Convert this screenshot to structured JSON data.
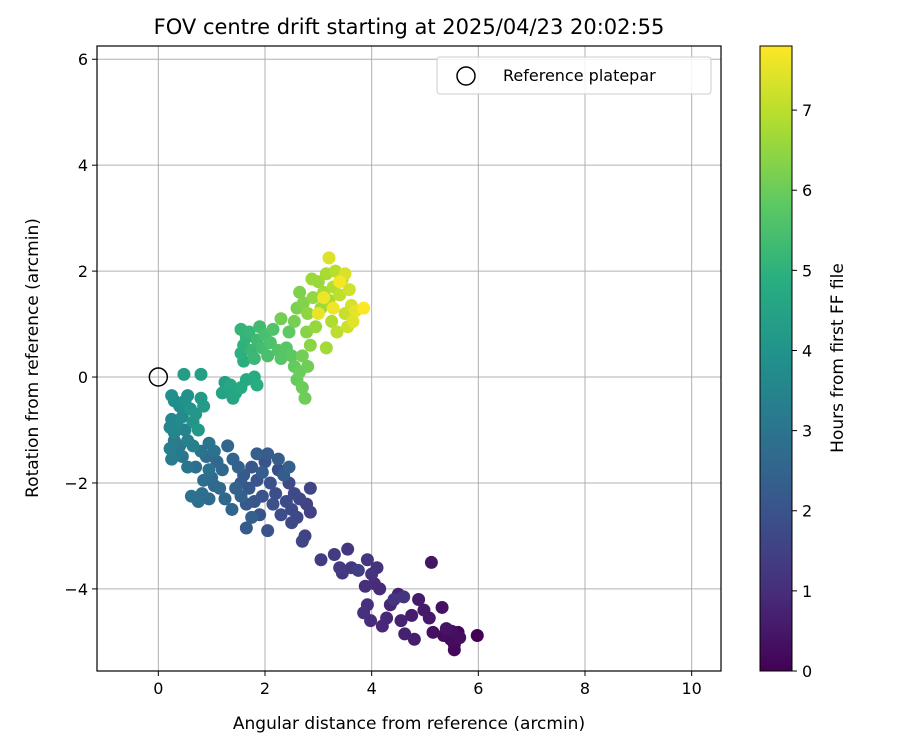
{
  "chart_data": {
    "type": "scatter",
    "title": "FOV centre drift starting at 2025/04/23 20:02:55",
    "xlabel": "Angular distance from reference (arcmin)",
    "ylabel": "Rotation from reference (arcmin)",
    "xlim": [
      -1.15,
      10.55
    ],
    "ylim": [
      -5.55,
      6.25
    ],
    "xticks": [
      0,
      2,
      4,
      6,
      8,
      10
    ],
    "yticks": [
      -4,
      -2,
      0,
      2,
      4,
      6
    ],
    "grid": true,
    "legend": {
      "placement": "upper right",
      "entries": [
        "Reference platepar"
      ]
    },
    "reference_point": {
      "x": 0,
      "y": 0,
      "label": "Reference platepar"
    },
    "colorbar": {
      "label": "Hours from first FF file",
      "colormap": "viridis",
      "range": [
        0,
        7.8
      ],
      "ticks": [
        0,
        1,
        2,
        3,
        4,
        5,
        6,
        7
      ]
    },
    "series": [
      {
        "color_by": "hours",
        "points": [
          {
            "x": 5.98,
            "y": -4.88,
            "h": 0.0
          },
          {
            "x": 5.62,
            "y": -4.82,
            "h": 0.1
          },
          {
            "x": 5.55,
            "y": -5.15,
            "h": 0.15
          },
          {
            "x": 5.55,
            "y": -5.05,
            "h": 0.18
          },
          {
            "x": 5.48,
            "y": -4.95,
            "h": 0.22
          },
          {
            "x": 5.35,
            "y": -4.88,
            "h": 0.25
          },
          {
            "x": 5.65,
            "y": -4.92,
            "h": 0.28
          },
          {
            "x": 5.5,
            "y": -4.8,
            "h": 0.3
          },
          {
            "x": 5.32,
            "y": -4.35,
            "h": 0.35
          },
          {
            "x": 5.15,
            "y": -4.82,
            "h": 0.38
          },
          {
            "x": 5.4,
            "y": -4.75,
            "h": 0.42
          },
          {
            "x": 5.12,
            "y": -3.5,
            "h": 0.45
          },
          {
            "x": 5.08,
            "y": -4.55,
            "h": 0.5
          },
          {
            "x": 4.98,
            "y": -4.4,
            "h": 0.55
          },
          {
            "x": 4.88,
            "y": -4.2,
            "h": 0.58
          },
          {
            "x": 4.75,
            "y": -4.5,
            "h": 0.62
          },
          {
            "x": 4.8,
            "y": -4.95,
            "h": 0.65
          },
          {
            "x": 4.62,
            "y": -4.85,
            "h": 0.7
          },
          {
            "x": 4.55,
            "y": -4.6,
            "h": 0.75
          },
          {
            "x": 4.5,
            "y": -4.1,
            "h": 0.78
          },
          {
            "x": 4.35,
            "y": -4.3,
            "h": 0.82
          },
          {
            "x": 4.28,
            "y": -4.55,
            "h": 0.85
          },
          {
            "x": 4.2,
            "y": -4.7,
            "h": 0.88
          },
          {
            "x": 4.15,
            "y": -4.0,
            "h": 0.9
          },
          {
            "x": 4.05,
            "y": -3.9,
            "h": 0.95
          },
          {
            "x": 3.98,
            "y": -4.6,
            "h": 0.98
          },
          {
            "x": 3.92,
            "y": -4.3,
            "h": 1.02
          },
          {
            "x": 3.88,
            "y": -3.95,
            "h": 1.05
          },
          {
            "x": 3.85,
            "y": -4.45,
            "h": 1.08
          },
          {
            "x": 4.1,
            "y": -3.6,
            "h": 1.1
          },
          {
            "x": 4.0,
            "y": -3.72,
            "h": 1.12
          },
          {
            "x": 4.6,
            "y": -4.15,
            "h": 1.15
          },
          {
            "x": 4.42,
            "y": -4.2,
            "h": 1.18
          },
          {
            "x": 3.92,
            "y": -3.45,
            "h": 1.2
          },
          {
            "x": 3.55,
            "y": -3.25,
            "h": 1.25
          },
          {
            "x": 3.62,
            "y": -3.6,
            "h": 1.28
          },
          {
            "x": 3.45,
            "y": -3.7,
            "h": 1.3
          },
          {
            "x": 3.4,
            "y": -3.6,
            "h": 1.35
          },
          {
            "x": 3.3,
            "y": -3.35,
            "h": 1.38
          },
          {
            "x": 3.05,
            "y": -3.45,
            "h": 1.4
          },
          {
            "x": 3.75,
            "y": -3.65,
            "h": 1.42
          },
          {
            "x": 2.85,
            "y": -2.55,
            "h": 1.5
          },
          {
            "x": 2.78,
            "y": -2.4,
            "h": 1.55
          },
          {
            "x": 2.75,
            "y": -3.0,
            "h": 1.58
          },
          {
            "x": 2.7,
            "y": -3.1,
            "h": 1.6
          },
          {
            "x": 2.85,
            "y": -2.1,
            "h": 1.62
          },
          {
            "x": 2.65,
            "y": -2.3,
            "h": 1.65
          },
          {
            "x": 2.6,
            "y": -2.65,
            "h": 1.68
          },
          {
            "x": 2.55,
            "y": -2.2,
            "h": 1.7
          },
          {
            "x": 2.5,
            "y": -2.75,
            "h": 1.72
          },
          {
            "x": 2.5,
            "y": -2.5,
            "h": 1.75
          },
          {
            "x": 2.45,
            "y": -2.0,
            "h": 1.78
          },
          {
            "x": 2.4,
            "y": -2.35,
            "h": 1.8
          },
          {
            "x": 2.3,
            "y": -2.6,
            "h": 1.82
          },
          {
            "x": 2.25,
            "y": -1.75,
            "h": 1.85
          },
          {
            "x": 2.2,
            "y": -2.2,
            "h": 1.88
          },
          {
            "x": 2.15,
            "y": -2.4,
            "h": 1.9
          },
          {
            "x": 2.1,
            "y": -2.0,
            "h": 1.92
          },
          {
            "x": 2.05,
            "y": -2.9,
            "h": 1.95
          },
          {
            "x": 2.0,
            "y": -1.6,
            "h": 1.98
          },
          {
            "x": 1.95,
            "y": -2.25,
            "h": 2.0
          },
          {
            "x": 1.9,
            "y": -2.6,
            "h": 2.02
          },
          {
            "x": 1.85,
            "y": -1.95,
            "h": 2.05
          },
          {
            "x": 1.8,
            "y": -2.35,
            "h": 2.08
          },
          {
            "x": 1.75,
            "y": -1.7,
            "h": 2.1
          },
          {
            "x": 1.7,
            "y": -2.1,
            "h": 2.12
          },
          {
            "x": 1.65,
            "y": -2.4,
            "h": 2.15
          },
          {
            "x": 1.65,
            "y": -2.85,
            "h": 2.18
          },
          {
            "x": 1.6,
            "y": -1.85,
            "h": 2.2
          },
          {
            "x": 1.55,
            "y": -2.0,
            "h": 2.22
          },
          {
            "x": 2.35,
            "y": -1.85,
            "h": 2.25
          },
          {
            "x": 2.25,
            "y": -1.55,
            "h": 2.28
          },
          {
            "x": 2.05,
            "y": -1.45,
            "h": 2.3
          },
          {
            "x": 1.95,
            "y": -1.8,
            "h": 2.32
          },
          {
            "x": 1.85,
            "y": -1.45,
            "h": 2.35
          },
          {
            "x": 2.45,
            "y": -1.7,
            "h": 2.38
          },
          {
            "x": 1.75,
            "y": -2.65,
            "h": 2.4
          },
          {
            "x": 1.55,
            "y": -2.25,
            "h": 2.42
          },
          {
            "x": 1.5,
            "y": -1.7,
            "h": 2.45
          },
          {
            "x": 1.45,
            "y": -2.1,
            "h": 2.48
          },
          {
            "x": 1.4,
            "y": -1.55,
            "h": 2.5
          },
          {
            "x": 1.38,
            "y": -2.5,
            "h": 2.52
          },
          {
            "x": 1.3,
            "y": -1.3,
            "h": 2.55
          },
          {
            "x": 1.25,
            "y": -2.3,
            "h": 2.58
          },
          {
            "x": 1.2,
            "y": -1.75,
            "h": 2.6
          },
          {
            "x": 1.15,
            "y": -2.1,
            "h": 2.62
          },
          {
            "x": 1.1,
            "y": -1.6,
            "h": 2.65
          },
          {
            "x": 1.05,
            "y": -2.05,
            "h": 2.68
          },
          {
            "x": 1.0,
            "y": -1.9,
            "h": 2.7
          },
          {
            "x": 0.95,
            "y": -2.3,
            "h": 2.72
          },
          {
            "x": 0.9,
            "y": -1.5,
            "h": 2.75
          },
          {
            "x": 0.85,
            "y": -1.95,
            "h": 2.78
          },
          {
            "x": 0.82,
            "y": -2.2,
            "h": 2.8
          },
          {
            "x": 0.75,
            "y": -2.35,
            "h": 2.82
          },
          {
            "x": 0.7,
            "y": -1.7,
            "h": 2.85
          },
          {
            "x": 0.62,
            "y": -2.25,
            "h": 2.88
          },
          {
            "x": 0.95,
            "y": -1.75,
            "h": 2.9
          },
          {
            "x": 1.05,
            "y": -1.4,
            "h": 2.92
          },
          {
            "x": 0.8,
            "y": -1.4,
            "h": 2.95
          },
          {
            "x": 0.95,
            "y": -1.25,
            "h": 2.98
          },
          {
            "x": 0.55,
            "y": -1.7,
            "h": 3.0
          },
          {
            "x": 0.45,
            "y": -1.5,
            "h": 3.05
          },
          {
            "x": 0.4,
            "y": -1.3,
            "h": 3.1
          },
          {
            "x": 0.35,
            "y": -1.45,
            "h": 3.15
          },
          {
            "x": 0.3,
            "y": -1.2,
            "h": 3.2
          },
          {
            "x": 0.25,
            "y": -1.55,
            "h": 3.25
          },
          {
            "x": 0.22,
            "y": -1.35,
            "h": 3.3
          },
          {
            "x": 0.55,
            "y": -1.2,
            "h": 3.35
          },
          {
            "x": 0.65,
            "y": -1.3,
            "h": 3.4
          },
          {
            "x": 0.5,
            "y": -1.0,
            "h": 3.45
          },
          {
            "x": 0.3,
            "y": -1.05,
            "h": 3.5
          },
          {
            "x": 0.22,
            "y": -0.95,
            "h": 3.55
          },
          {
            "x": 0.25,
            "y": -0.8,
            "h": 3.6
          },
          {
            "x": 0.35,
            "y": -0.9,
            "h": 3.65
          },
          {
            "x": 0.45,
            "y": -0.75,
            "h": 3.7
          },
          {
            "x": 0.4,
            "y": -0.55,
            "h": 3.75
          },
          {
            "x": 0.3,
            "y": -0.45,
            "h": 3.8
          },
          {
            "x": 0.25,
            "y": -0.35,
            "h": 3.85
          },
          {
            "x": 0.5,
            "y": -0.45,
            "h": 3.9
          },
          {
            "x": 0.55,
            "y": -0.35,
            "h": 3.95
          },
          {
            "x": 0.6,
            "y": -0.6,
            "h": 4.0
          },
          {
            "x": 0.65,
            "y": -0.85,
            "h": 4.05
          },
          {
            "x": 0.7,
            "y": -0.7,
            "h": 4.1
          },
          {
            "x": 0.75,
            "y": -1.0,
            "h": 4.15
          },
          {
            "x": 0.8,
            "y": -0.4,
            "h": 4.2
          },
          {
            "x": 0.85,
            "y": -0.55,
            "h": 4.25
          },
          {
            "x": 0.48,
            "y": 0.05,
            "h": 4.3
          },
          {
            "x": 0.8,
            "y": 0.05,
            "h": 4.35
          },
          {
            "x": 1.25,
            "y": -0.1,
            "h": 4.4
          },
          {
            "x": 1.2,
            "y": -0.3,
            "h": 4.45
          },
          {
            "x": 1.3,
            "y": -0.25,
            "h": 4.5
          },
          {
            "x": 1.4,
            "y": -0.4,
            "h": 4.55
          },
          {
            "x": 1.35,
            "y": -0.15,
            "h": 4.6
          },
          {
            "x": 1.45,
            "y": -0.3,
            "h": 4.65
          },
          {
            "x": 1.55,
            "y": -0.2,
            "h": 4.7
          },
          {
            "x": 1.65,
            "y": -0.05,
            "h": 4.75
          },
          {
            "x": 1.8,
            "y": 0.0,
            "h": 4.8
          },
          {
            "x": 1.85,
            "y": -0.15,
            "h": 4.85
          },
          {
            "x": 1.6,
            "y": 0.3,
            "h": 4.9
          },
          {
            "x": 1.55,
            "y": 0.45,
            "h": 4.95
          },
          {
            "x": 1.6,
            "y": 0.6,
            "h": 5.0
          },
          {
            "x": 1.65,
            "y": 0.75,
            "h": 5.05
          },
          {
            "x": 1.55,
            "y": 0.9,
            "h": 5.1
          },
          {
            "x": 1.7,
            "y": 0.85,
            "h": 5.15
          },
          {
            "x": 1.75,
            "y": 0.5,
            "h": 5.2
          },
          {
            "x": 1.8,
            "y": 0.35,
            "h": 5.25
          },
          {
            "x": 1.85,
            "y": 0.7,
            "h": 5.3
          },
          {
            "x": 1.9,
            "y": 0.95,
            "h": 5.35
          },
          {
            "x": 1.95,
            "y": 0.55,
            "h": 5.4
          },
          {
            "x": 2.0,
            "y": 0.8,
            "h": 5.45
          },
          {
            "x": 2.05,
            "y": 0.4,
            "h": 5.5
          },
          {
            "x": 2.1,
            "y": 0.65,
            "h": 5.55
          },
          {
            "x": 2.15,
            "y": 0.9,
            "h": 5.6
          },
          {
            "x": 2.25,
            "y": 0.5,
            "h": 5.65
          },
          {
            "x": 2.3,
            "y": 0.35,
            "h": 5.7
          },
          {
            "x": 2.4,
            "y": 0.55,
            "h": 5.75
          },
          {
            "x": 2.5,
            "y": 0.4,
            "h": 5.8
          },
          {
            "x": 2.45,
            "y": 0.85,
            "h": 5.85
          },
          {
            "x": 2.55,
            "y": 0.2,
            "h": 5.9
          },
          {
            "x": 2.6,
            "y": -0.05,
            "h": 5.95
          },
          {
            "x": 2.65,
            "y": 0.1,
            "h": 6.0
          },
          {
            "x": 2.7,
            "y": -0.2,
            "h": 6.02
          },
          {
            "x": 2.75,
            "y": -0.4,
            "h": 6.05
          },
          {
            "x": 2.8,
            "y": 0.2,
            "h": 6.08
          },
          {
            "x": 2.7,
            "y": 0.4,
            "h": 6.1
          },
          {
            "x": 2.3,
            "y": 1.1,
            "h": 6.12
          },
          {
            "x": 2.55,
            "y": 1.05,
            "h": 6.15
          },
          {
            "x": 2.6,
            "y": 1.3,
            "h": 6.2
          },
          {
            "x": 2.65,
            "y": 1.6,
            "h": 6.25
          },
          {
            "x": 2.72,
            "y": 1.4,
            "h": 6.3
          },
          {
            "x": 2.78,
            "y": 0.85,
            "h": 6.35
          },
          {
            "x": 2.85,
            "y": 0.6,
            "h": 6.4
          },
          {
            "x": 2.8,
            "y": 1.2,
            "h": 6.45
          },
          {
            "x": 2.9,
            "y": 1.5,
            "h": 6.5
          },
          {
            "x": 2.95,
            "y": 0.95,
            "h": 6.55
          },
          {
            "x": 3.0,
            "y": 1.8,
            "h": 6.6
          },
          {
            "x": 2.88,
            "y": 1.85,
            "h": 6.62
          },
          {
            "x": 3.05,
            "y": 1.3,
            "h": 6.65
          },
          {
            "x": 3.1,
            "y": 1.6,
            "h": 6.7
          },
          {
            "x": 3.15,
            "y": 0.55,
            "h": 6.72
          },
          {
            "x": 3.15,
            "y": 1.95,
            "h": 6.75
          },
          {
            "x": 3.2,
            "y": 1.45,
            "h": 6.8
          },
          {
            "x": 3.25,
            "y": 1.05,
            "h": 6.85
          },
          {
            "x": 3.28,
            "y": 1.7,
            "h": 6.9
          },
          {
            "x": 3.32,
            "y": 2.0,
            "h": 6.95
          },
          {
            "x": 3.35,
            "y": 0.85,
            "h": 7.0
          },
          {
            "x": 3.4,
            "y": 1.55,
            "h": 7.05
          },
          {
            "x": 3.45,
            "y": 1.85,
            "h": 7.1
          },
          {
            "x": 3.5,
            "y": 1.2,
            "h": 7.15
          },
          {
            "x": 3.55,
            "y": 0.95,
            "h": 7.2
          },
          {
            "x": 3.58,
            "y": 1.65,
            "h": 7.25
          },
          {
            "x": 3.62,
            "y": 1.35,
            "h": 7.3
          },
          {
            "x": 3.5,
            "y": 1.95,
            "h": 7.35
          },
          {
            "x": 3.2,
            "y": 2.25,
            "h": 7.4
          },
          {
            "x": 3.65,
            "y": 1.05,
            "h": 7.45
          },
          {
            "x": 3.7,
            "y": 1.25,
            "h": 7.5
          },
          {
            "x": 3.0,
            "y": 1.2,
            "h": 7.55
          },
          {
            "x": 3.1,
            "y": 1.5,
            "h": 7.6
          },
          {
            "x": 3.28,
            "y": 1.3,
            "h": 7.65
          },
          {
            "x": 3.4,
            "y": 1.8,
            "h": 7.7
          },
          {
            "x": 3.85,
            "y": 1.3,
            "h": 7.78
          }
        ]
      }
    ]
  }
}
